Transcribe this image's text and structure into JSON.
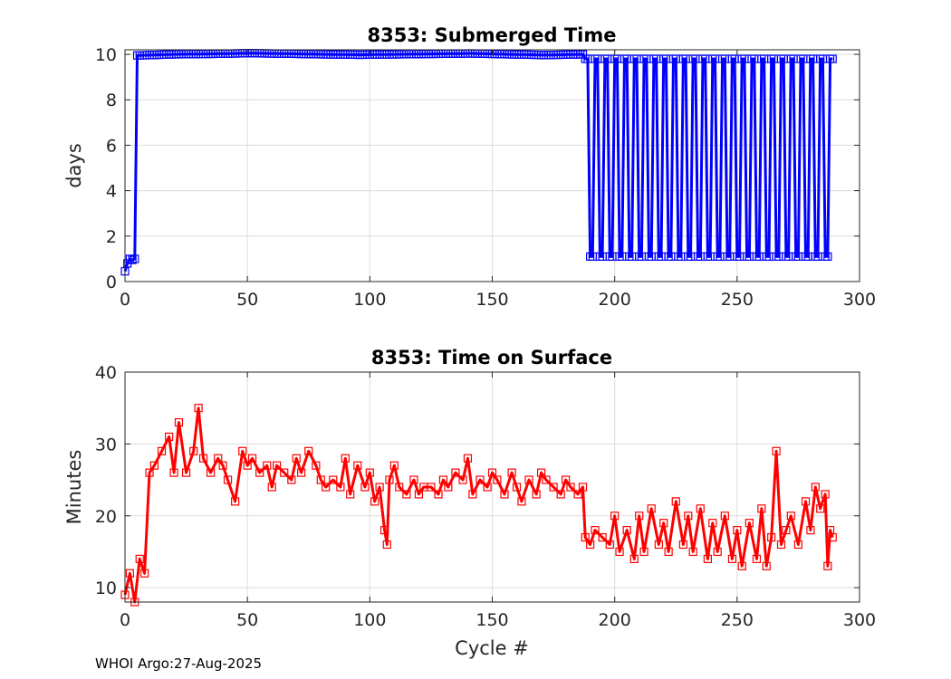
{
  "footer": {
    "text": "WHOI Argo:27-Aug-2025"
  },
  "chart_data": [
    {
      "type": "line",
      "title": "8353: Submerged Time",
      "xlabel": "",
      "ylabel": "days",
      "xlim": [
        0,
        300
      ],
      "ylim": [
        0,
        10.2
      ],
      "xticks": [
        0,
        50,
        100,
        150,
        200,
        250,
        300
      ],
      "yticks": [
        0,
        2,
        4,
        6,
        8,
        10
      ],
      "grid": true,
      "color": "#0000FF",
      "marker": "square",
      "series": [
        {
          "description": "cycles 0-3 short dives, then ~10 days through cycle 187, then alternating ~9.8 and ~1.1 days to cycle 289",
          "segments": [
            {
              "x": [
                0,
                1,
                2,
                3,
                4
              ],
              "y": [
                0.45,
                0.8,
                1.0,
                0.95,
                1.0
              ]
            },
            {
              "x_start": 5,
              "x_end": 187,
              "y_values": [
                9.95,
                10.0,
                10.02,
                10.05,
                10.03,
                10.0,
                9.98,
                10.0,
                10.02,
                10.04,
                10.0,
                9.97,
                10.0
              ]
            },
            {
              "x_start": 188,
              "x_end": 289,
              "alternating": {
                "high": 9.8,
                "low": 1.1,
                "period": 4
              }
            }
          ]
        }
      ]
    },
    {
      "type": "line",
      "title": "8353: Time on Surface",
      "xlabel": "Cycle #",
      "ylabel": "Minutes",
      "xlim": [
        0,
        300
      ],
      "ylim": [
        8,
        40
      ],
      "xticks": [
        0,
        50,
        100,
        150,
        200,
        250,
        300
      ],
      "yticks": [
        10,
        20,
        30,
        40
      ],
      "grid": true,
      "color": "#FF0000",
      "marker": "square",
      "series": [
        {
          "x": [
            0,
            2,
            4,
            6,
            8,
            10,
            12,
            15,
            18,
            20,
            22,
            25,
            28,
            30,
            32,
            35,
            38,
            40,
            42,
            45,
            48,
            50,
            52,
            55,
            58,
            60,
            62,
            65,
            68,
            70,
            72,
            75,
            78,
            80,
            82,
            85,
            88,
            90,
            92,
            95,
            98,
            100,
            102,
            104,
            106,
            107,
            108,
            110,
            112,
            115,
            118,
            120,
            122,
            125,
            128,
            130,
            132,
            135,
            138,
            140,
            142,
            145,
            148,
            150,
            152,
            155,
            158,
            160,
            162,
            165,
            168,
            170,
            172,
            175,
            178,
            180,
            182,
            185,
            187,
            188,
            190,
            192,
            195,
            198,
            200,
            202,
            205,
            208,
            210,
            212,
            215,
            218,
            220,
            222,
            225,
            228,
            230,
            232,
            235,
            238,
            240,
            242,
            245,
            248,
            250,
            252,
            255,
            258,
            260,
            262,
            264,
            266,
            268,
            270,
            272,
            275,
            278,
            280,
            282,
            284,
            286,
            287,
            288,
            289
          ],
          "y": [
            9,
            12,
            8,
            14,
            12,
            26,
            27,
            29,
            31,
            26,
            33,
            26,
            29,
            35,
            28,
            26,
            28,
            27,
            25,
            22,
            29,
            27,
            28,
            26,
            27,
            24,
            27,
            26,
            25,
            28,
            26,
            29,
            27,
            25,
            24,
            25,
            24,
            28,
            23,
            27,
            24,
            26,
            22,
            24,
            18,
            16,
            25,
            27,
            24,
            23,
            25,
            23,
            24,
            24,
            23,
            25,
            24,
            26,
            25,
            28,
            23,
            25,
            24,
            26,
            25,
            23,
            26,
            24,
            22,
            25,
            23,
            26,
            25,
            24,
            23,
            25,
            24,
            23,
            24,
            17,
            16,
            18,
            17,
            16,
            20,
            15,
            18,
            14,
            20,
            15,
            21,
            16,
            19,
            15,
            22,
            16,
            20,
            15,
            21,
            14,
            19,
            15,
            20,
            14,
            18,
            13,
            19,
            14,
            21,
            13,
            17,
            29,
            16,
            18,
            20,
            16,
            22,
            18,
            24,
            21,
            23,
            13,
            18,
            17
          ]
        }
      ]
    }
  ]
}
